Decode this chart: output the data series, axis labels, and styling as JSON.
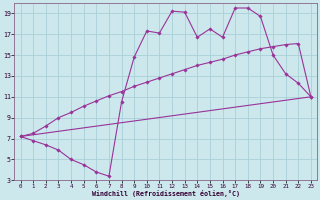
{
  "xlabel": "Windchill (Refroidissement éolien,°C)",
  "bg_color": "#cce8ec",
  "grid_color": "#aad0d8",
  "line_color": "#993399",
  "spine_color": "#886688",
  "xlim": [
    -0.5,
    23.5
  ],
  "ylim": [
    3,
    20
  ],
  "xticks": [
    0,
    1,
    2,
    3,
    4,
    5,
    6,
    7,
    8,
    9,
    10,
    11,
    12,
    13,
    14,
    15,
    16,
    17,
    18,
    19,
    20,
    21,
    22,
    23
  ],
  "yticks": [
    3,
    5,
    7,
    9,
    11,
    13,
    15,
    17,
    19
  ],
  "line1_x": [
    0,
    1,
    2,
    3,
    4,
    5,
    6,
    7,
    8,
    9,
    10,
    11,
    12,
    13,
    14,
    15,
    16,
    17,
    18,
    19,
    20,
    21,
    22,
    23
  ],
  "line1_y": [
    7.2,
    6.8,
    6.4,
    5.9,
    5.0,
    4.5,
    3.8,
    3.4,
    10.5,
    14.8,
    17.3,
    17.1,
    19.2,
    19.1,
    16.7,
    17.5,
    16.7,
    19.5,
    19.5,
    18.7,
    15.0,
    13.2,
    12.3,
    11.0
  ],
  "line2_x": [
    0,
    1,
    2,
    3,
    4,
    5,
    6,
    7,
    8,
    9,
    10,
    11,
    12,
    13,
    14,
    15,
    16,
    17,
    18,
    19,
    20,
    21,
    22,
    23
  ],
  "line2_y": [
    7.2,
    7.5,
    8.2,
    9.0,
    9.5,
    10.1,
    10.6,
    11.1,
    11.5,
    12.0,
    12.4,
    12.8,
    13.2,
    13.6,
    14.0,
    14.3,
    14.6,
    15.0,
    15.3,
    15.6,
    15.8,
    16.0,
    16.1,
    11.0
  ],
  "line3_x": [
    0,
    23
  ],
  "line3_y": [
    7.2,
    11.0
  ]
}
